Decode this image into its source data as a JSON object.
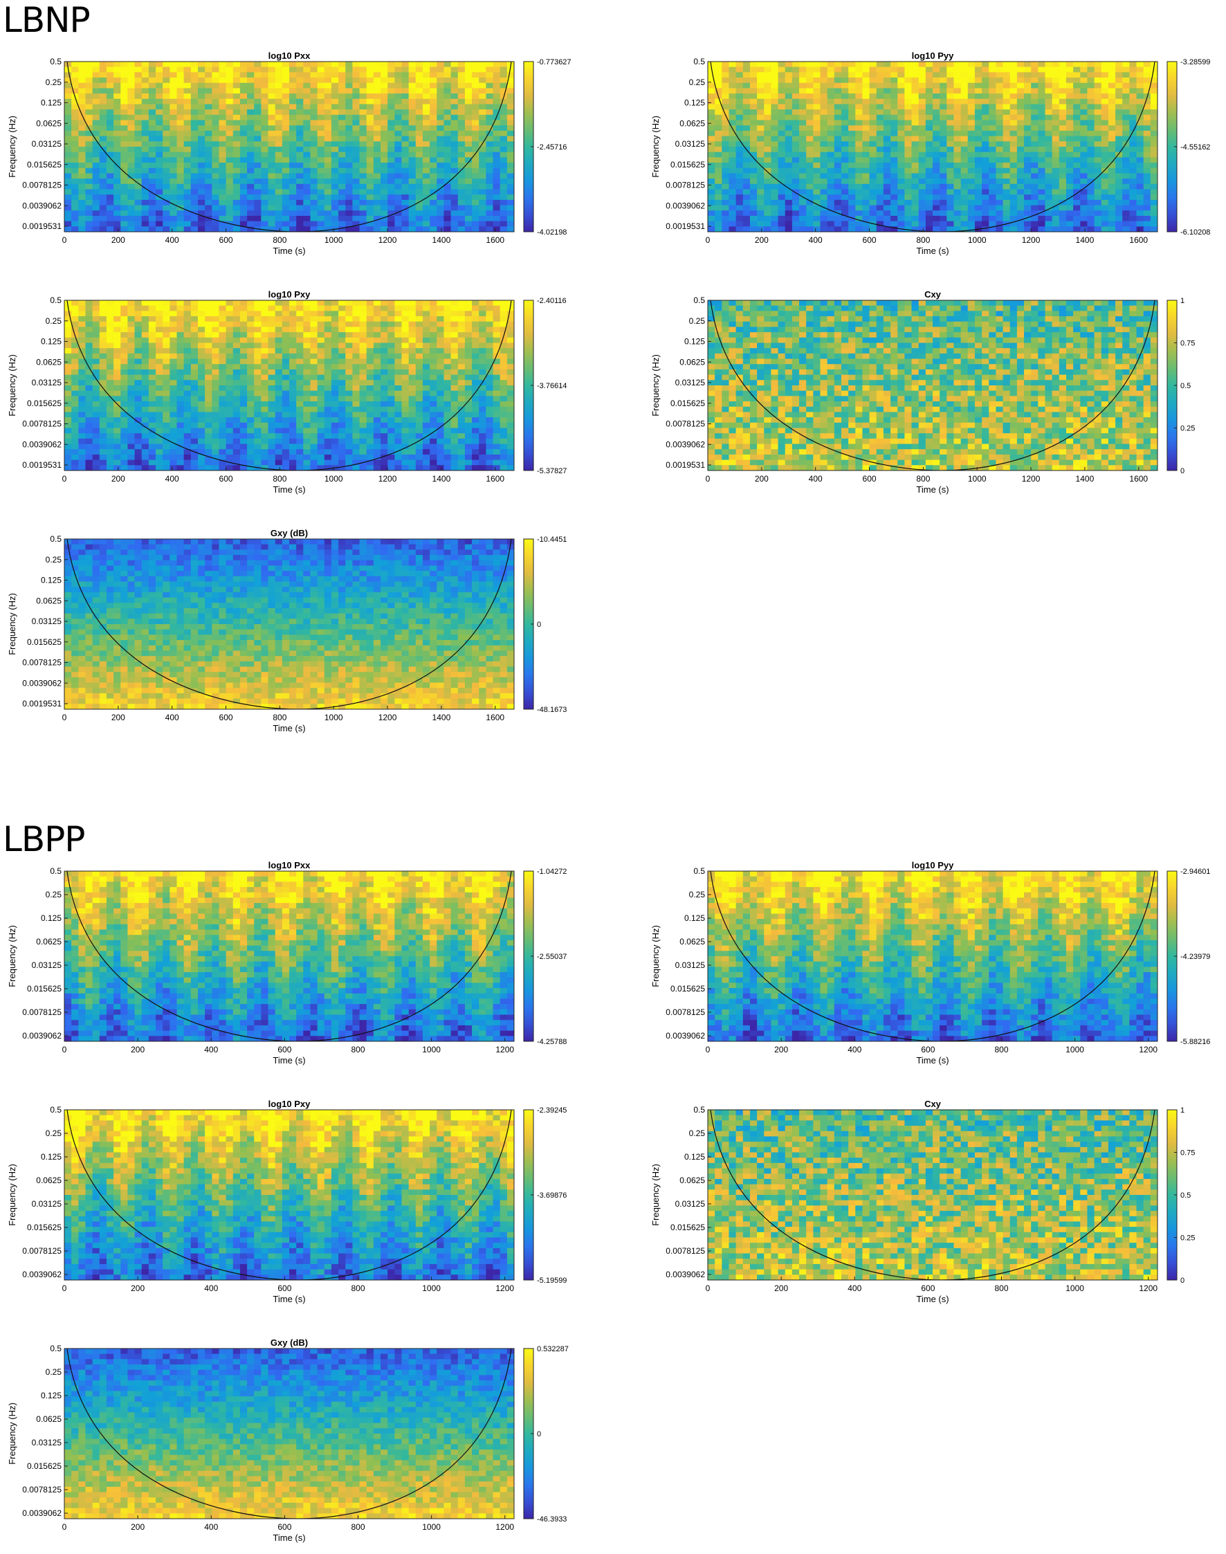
{
  "sections": [
    {
      "label": "LBNP"
    },
    {
      "label": "LBPP"
    }
  ],
  "chart_data": [
    {
      "type": "heatmap",
      "group": "LBNP",
      "title": "log10 Pxx",
      "xlabel": "Time (s)",
      "ylabel": "Frequency (Hz)",
      "xlim": [
        0,
        1670
      ],
      "xticks": [
        0,
        200,
        400,
        600,
        800,
        1000,
        1200,
        1400,
        1600
      ],
      "yticks": [
        "0.5",
        "0.25",
        "0.125",
        "0.0625",
        "0.03125",
        "0.015625",
        "0.0078125",
        "0.0039062",
        "0.0019531"
      ],
      "colorbar": {
        "ticks": [
          "-0.773627",
          "-2.45716",
          "-4.02198"
        ]
      }
    },
    {
      "type": "heatmap",
      "group": "LBNP",
      "title": "log10 Pyy",
      "xlabel": "Time (s)",
      "ylabel": "Frequency (Hz)",
      "xlim": [
        0,
        1670
      ],
      "xticks": [
        0,
        200,
        400,
        600,
        800,
        1000,
        1200,
        1400,
        1600
      ],
      "yticks": [
        "0.5",
        "0.25",
        "0.125",
        "0.0625",
        "0.03125",
        "0.015625",
        "0.0078125",
        "0.0039062",
        "0.0019531"
      ],
      "colorbar": {
        "ticks": [
          "-3.28599",
          "-4.55162",
          "-6.10208"
        ]
      }
    },
    {
      "type": "heatmap",
      "group": "LBNP",
      "title": "log10 Pxy",
      "xlabel": "Time (s)",
      "ylabel": "Frequency (Hz)",
      "xlim": [
        0,
        1670
      ],
      "xticks": [
        0,
        200,
        400,
        600,
        800,
        1000,
        1200,
        1400,
        1600
      ],
      "yticks": [
        "0.5",
        "0.25",
        "0.125",
        "0.0625",
        "0.03125",
        "0.015625",
        "0.0078125",
        "0.0039062",
        "0.0019531"
      ],
      "colorbar": {
        "ticks": [
          "-2.40116",
          "-3.76614",
          "-5.37827"
        ]
      }
    },
    {
      "type": "heatmap",
      "group": "LBNP",
      "title": "Cxy",
      "xlabel": "Time (s)",
      "ylabel": "Frequency (Hz)",
      "xlim": [
        0,
        1670
      ],
      "xticks": [
        0,
        200,
        400,
        600,
        800,
        1000,
        1200,
        1400,
        1600
      ],
      "yticks": [
        "0.5",
        "0.25",
        "0.125",
        "0.0625",
        "0.03125",
        "0.015625",
        "0.0078125",
        "0.0039062",
        "0.0019531"
      ],
      "colorbar": {
        "ticks": [
          "1",
          "0.75",
          "0.5",
          "0.25",
          "0"
        ]
      }
    },
    {
      "type": "heatmap",
      "group": "LBNP",
      "title": "Gxy (dB)",
      "xlabel": "Time (s)",
      "ylabel": "Frequency (Hz)",
      "xlim": [
        0,
        1670
      ],
      "xticks": [
        0,
        200,
        400,
        600,
        800,
        1000,
        1200,
        1400,
        1600
      ],
      "yticks": [
        "0.5",
        "0.25",
        "0.125",
        "0.0625",
        "0.03125",
        "0.015625",
        "0.0078125",
        "0.0039062",
        "0.0019531"
      ],
      "colorbar": {
        "ticks": [
          "-10.4451",
          "0",
          "-48.1673"
        ]
      }
    },
    {
      "type": "heatmap",
      "group": "LBPP",
      "title": "log10 Pxx",
      "xlabel": "Time (s)",
      "ylabel": "Frequency (Hz)",
      "xlim": [
        0,
        1225
      ],
      "xticks": [
        0,
        200,
        400,
        600,
        800,
        1000,
        1200
      ],
      "yticks": [
        "0.5",
        "0.25",
        "0.125",
        "0.0625",
        "0.03125",
        "0.015625",
        "0.0078125",
        "0.0039062"
      ],
      "colorbar": {
        "ticks": [
          "-1.04272",
          "-2.55037",
          "-4.25788"
        ]
      }
    },
    {
      "type": "heatmap",
      "group": "LBPP",
      "title": "log10 Pyy",
      "xlabel": "Time (s)",
      "ylabel": "Frequency (Hz)",
      "xlim": [
        0,
        1225
      ],
      "xticks": [
        0,
        200,
        400,
        600,
        800,
        1000,
        1200
      ],
      "yticks": [
        "0.5",
        "0.25",
        "0.125",
        "0.0625",
        "0.03125",
        "0.015625",
        "0.0078125",
        "0.0039062"
      ],
      "colorbar": {
        "ticks": [
          "-2.94601",
          "-4.23979",
          "-5.88216"
        ]
      }
    },
    {
      "type": "heatmap",
      "group": "LBPP",
      "title": "log10 Pxy",
      "xlabel": "Time (s)",
      "ylabel": "Frequency (Hz)",
      "xlim": [
        0,
        1225
      ],
      "xticks": [
        0,
        200,
        400,
        600,
        800,
        1000,
        1200
      ],
      "yticks": [
        "0.5",
        "0.25",
        "0.125",
        "0.0625",
        "0.03125",
        "0.015625",
        "0.0078125",
        "0.0039062"
      ],
      "colorbar": {
        "ticks": [
          "-2.39245",
          "-3.69876",
          "-5.19599"
        ]
      }
    },
    {
      "type": "heatmap",
      "group": "LBPP",
      "title": "Cxy",
      "xlabel": "Time (s)",
      "ylabel": "Frequency (Hz)",
      "xlim": [
        0,
        1225
      ],
      "xticks": [
        0,
        200,
        400,
        600,
        800,
        1000,
        1200
      ],
      "yticks": [
        "0.5",
        "0.25",
        "0.125",
        "0.0625",
        "0.03125",
        "0.015625",
        "0.0078125",
        "0.0039062"
      ],
      "colorbar": {
        "ticks": [
          "1",
          "0.75",
          "0.5",
          "0.25",
          "0"
        ]
      }
    },
    {
      "type": "heatmap",
      "group": "LBPP",
      "title": "Gxy (dB)",
      "xlabel": "Time (s)",
      "ylabel": "Frequency (Hz)",
      "xlim": [
        0,
        1225
      ],
      "xticks": [
        0,
        200,
        400,
        600,
        800,
        1000,
        1200
      ],
      "yticks": [
        "0.5",
        "0.25",
        "0.125",
        "0.0625",
        "0.03125",
        "0.015625",
        "0.0078125",
        "0.0039062"
      ],
      "colorbar": {
        "ticks": [
          "0.532287",
          "0",
          "-46.3933"
        ]
      }
    }
  ]
}
